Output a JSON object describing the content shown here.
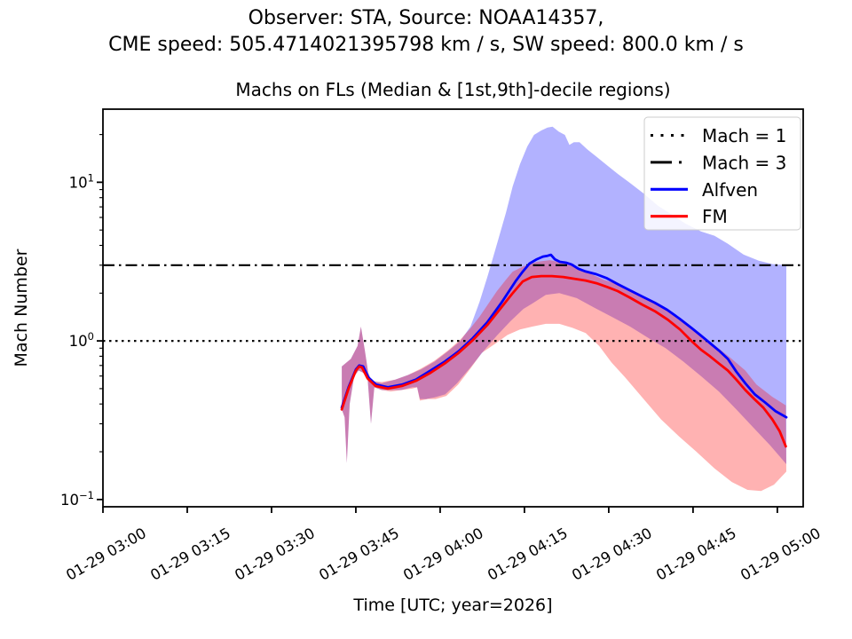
{
  "figure": {
    "suptitle_line1": "Observer: STA, Source: NOAA14357,",
    "suptitle_line2": "CME speed: 505.4714021395798 km / s, SW speed: 800.0 km / s"
  },
  "chart_data": {
    "type": "line",
    "title": "Machs on FLs (Median & [1st,9th]-decile regions)",
    "xlabel": "Time [UTC; year=2026]",
    "ylabel": "Mach Number",
    "yscale": "log",
    "ylim": [
      0.09,
      28.9
    ],
    "xlim_minutes": [
      0,
      124.6
    ],
    "x_ticks": [
      {
        "minutes": 0,
        "label": "01-29 03:00"
      },
      {
        "minutes": 15,
        "label": "01-29 03:15"
      },
      {
        "minutes": 30,
        "label": "01-29 03:30"
      },
      {
        "minutes": 45,
        "label": "01-29 03:45"
      },
      {
        "minutes": 60,
        "label": "01-29 04:00"
      },
      {
        "minutes": 75,
        "label": "01-29 04:15"
      },
      {
        "minutes": 90,
        "label": "01-29 04:30"
      },
      {
        "minutes": 105,
        "label": "01-29 04:45"
      },
      {
        "minutes": 120,
        "label": "01-29 05:00"
      }
    ],
    "y_ticks": [
      {
        "value": 10,
        "base": "10",
        "exp": "1"
      },
      {
        "value": 1,
        "base": "10",
        "exp": "0"
      },
      {
        "value": 0.1,
        "base": "10",
        "exp": "−1"
      }
    ],
    "hlines": [
      {
        "label": "Mach = 1",
        "value": 1,
        "style": "dotted",
        "color": "#000000"
      },
      {
        "label": "Mach = 3",
        "value": 3,
        "style": "dashdot",
        "color": "#000000"
      }
    ],
    "series": [
      {
        "name": "Alfven",
        "color": "#0000ff",
        "points": [
          [
            42.5,
            0.38
          ],
          [
            43.7,
            0.51
          ],
          [
            45.0,
            0.66
          ],
          [
            45.6,
            0.7
          ],
          [
            46.3,
            0.69
          ],
          [
            47.2,
            0.59
          ],
          [
            48.6,
            0.53
          ],
          [
            50.7,
            0.51
          ],
          [
            53.2,
            0.53
          ],
          [
            55.7,
            0.57
          ],
          [
            58.3,
            0.65
          ],
          [
            60.8,
            0.74
          ],
          [
            63.3,
            0.86
          ],
          [
            65.8,
            1.04
          ],
          [
            68.4,
            1.31
          ],
          [
            70.9,
            1.74
          ],
          [
            73.4,
            2.37
          ],
          [
            74.7,
            2.73
          ],
          [
            75.9,
            3.07
          ],
          [
            77.2,
            3.27
          ],
          [
            78.3,
            3.4
          ],
          [
            79.1,
            3.44
          ],
          [
            79.7,
            3.49
          ],
          [
            80.4,
            3.27
          ],
          [
            81.3,
            3.15
          ],
          [
            82.4,
            3.11
          ],
          [
            83.4,
            3.03
          ],
          [
            84.6,
            2.85
          ],
          [
            85.9,
            2.74
          ],
          [
            87.8,
            2.63
          ],
          [
            89.7,
            2.48
          ],
          [
            91.6,
            2.28
          ],
          [
            93.8,
            2.08
          ],
          [
            96.0,
            1.9
          ],
          [
            98.2,
            1.74
          ],
          [
            100.4,
            1.57
          ],
          [
            102.6,
            1.38
          ],
          [
            104.8,
            1.2
          ],
          [
            106.4,
            1.08
          ],
          [
            108.0,
            0.97
          ],
          [
            109.6,
            0.87
          ],
          [
            111.2,
            0.77
          ],
          [
            112.7,
            0.64
          ],
          [
            114.3,
            0.54
          ],
          [
            116.0,
            0.46
          ],
          [
            117.8,
            0.41
          ],
          [
            119.7,
            0.36
          ],
          [
            121.6,
            0.33
          ]
        ],
        "band_upper": [
          [
            42.5,
            0.69
          ],
          [
            44.1,
            0.77
          ],
          [
            45.3,
            0.93
          ],
          [
            45.9,
            1.23
          ],
          [
            46.6,
            0.87
          ],
          [
            47.2,
            0.63
          ],
          [
            47.8,
            0.56
          ],
          [
            49.6,
            0.54
          ],
          [
            52.0,
            0.57
          ],
          [
            54.3,
            0.61
          ],
          [
            56.6,
            0.66
          ],
          [
            59.0,
            0.74
          ],
          [
            61.4,
            0.86
          ],
          [
            63.5,
            0.99
          ],
          [
            65.4,
            1.23
          ],
          [
            67.0,
            1.76
          ],
          [
            68.5,
            2.6
          ],
          [
            70.1,
            4.07
          ],
          [
            71.7,
            6.4
          ],
          [
            72.9,
            9.4
          ],
          [
            74.2,
            13.0
          ],
          [
            75.5,
            16.8
          ],
          [
            76.7,
            19.9
          ],
          [
            78.0,
            21.2
          ],
          [
            79.1,
            22.1
          ],
          [
            80.0,
            22.4
          ],
          [
            81.1,
            20.9
          ],
          [
            82.2,
            19.9
          ],
          [
            83.0,
            17.2
          ],
          [
            83.8,
            17.9
          ],
          [
            84.8,
            17.9
          ],
          [
            86.2,
            16.1
          ],
          [
            87.8,
            14.5
          ],
          [
            89.7,
            12.8
          ],
          [
            91.6,
            11.3
          ],
          [
            93.8,
            9.9
          ],
          [
            96.2,
            8.5
          ],
          [
            98.8,
            7.1
          ],
          [
            101.4,
            6.2
          ],
          [
            103.6,
            5.5
          ],
          [
            106.4,
            4.9
          ],
          [
            108.8,
            4.6
          ],
          [
            111.2,
            4.1
          ],
          [
            114.0,
            3.5
          ],
          [
            116.7,
            3.2
          ],
          [
            119.1,
            3.05
          ],
          [
            121.6,
            3.0
          ]
        ],
        "band_lower": [
          [
            42.5,
            0.37
          ],
          [
            43.0,
            0.33
          ],
          [
            43.4,
            0.17
          ],
          [
            43.9,
            0.4
          ],
          [
            44.7,
            0.6
          ],
          [
            45.5,
            0.65
          ],
          [
            46.3,
            0.63
          ],
          [
            47.1,
            0.58
          ],
          [
            47.7,
            0.3
          ],
          [
            48.3,
            0.51
          ],
          [
            49.6,
            0.49
          ],
          [
            51.2,
            0.49
          ],
          [
            53.1,
            0.49
          ],
          [
            55.0,
            0.51
          ],
          [
            55.9,
            0.51
          ],
          [
            56.4,
            0.43
          ],
          [
            57.5,
            0.43
          ],
          [
            59.0,
            0.44
          ],
          [
            60.9,
            0.46
          ],
          [
            63.0,
            0.54
          ],
          [
            65.4,
            0.68
          ],
          [
            67.7,
            0.86
          ],
          [
            70.1,
            1.08
          ],
          [
            72.5,
            1.33
          ],
          [
            74.8,
            1.59
          ],
          [
            76.4,
            1.72
          ],
          [
            78.8,
            1.95
          ],
          [
            81.2,
            2.0
          ],
          [
            84.3,
            1.86
          ],
          [
            87.3,
            1.63
          ],
          [
            90.5,
            1.42
          ],
          [
            93.8,
            1.23
          ],
          [
            96.9,
            1.05
          ],
          [
            100.1,
            0.9
          ],
          [
            103.3,
            0.74
          ],
          [
            106.4,
            0.6
          ],
          [
            109.6,
            0.48
          ],
          [
            112.7,
            0.37
          ],
          [
            115.9,
            0.28
          ],
          [
            118.7,
            0.22
          ],
          [
            121.6,
            0.167
          ]
        ]
      },
      {
        "name": "FM",
        "color": "#ff0000",
        "points": [
          [
            42.5,
            0.37
          ],
          [
            43.7,
            0.5
          ],
          [
            45.0,
            0.65
          ],
          [
            45.6,
            0.69
          ],
          [
            46.1,
            0.68
          ],
          [
            47.1,
            0.58
          ],
          [
            48.5,
            0.52
          ],
          [
            50.7,
            0.5
          ],
          [
            53.2,
            0.52
          ],
          [
            55.7,
            0.56
          ],
          [
            58.3,
            0.63
          ],
          [
            60.8,
            0.72
          ],
          [
            63.3,
            0.84
          ],
          [
            65.8,
            1.01
          ],
          [
            68.4,
            1.26
          ],
          [
            70.9,
            1.63
          ],
          [
            72.8,
            1.98
          ],
          [
            74.7,
            2.37
          ],
          [
            76.3,
            2.53
          ],
          [
            78.0,
            2.56
          ],
          [
            79.9,
            2.56
          ],
          [
            81.9,
            2.53
          ],
          [
            84.0,
            2.46
          ],
          [
            85.9,
            2.4
          ],
          [
            87.8,
            2.31
          ],
          [
            89.7,
            2.19
          ],
          [
            91.6,
            2.06
          ],
          [
            93.8,
            1.87
          ],
          [
            96.0,
            1.69
          ],
          [
            98.2,
            1.54
          ],
          [
            100.5,
            1.36
          ],
          [
            102.7,
            1.18
          ],
          [
            104.7,
            1.0
          ],
          [
            106.4,
            0.88
          ],
          [
            108.0,
            0.8
          ],
          [
            109.6,
            0.72
          ],
          [
            111.2,
            0.65
          ],
          [
            112.7,
            0.57
          ],
          [
            114.3,
            0.49
          ],
          [
            115.9,
            0.43
          ],
          [
            117.5,
            0.38
          ],
          [
            119.1,
            0.32
          ],
          [
            120.4,
            0.27
          ],
          [
            121.5,
            0.216
          ]
        ],
        "band_upper": [
          [
            42.5,
            0.69
          ],
          [
            44.1,
            0.77
          ],
          [
            45.3,
            0.93
          ],
          [
            45.9,
            1.23
          ],
          [
            46.6,
            0.87
          ],
          [
            47.2,
            0.63
          ],
          [
            47.8,
            0.56
          ],
          [
            49.6,
            0.55
          ],
          [
            52.0,
            0.57
          ],
          [
            54.3,
            0.61
          ],
          [
            56.6,
            0.67
          ],
          [
            59.0,
            0.75
          ],
          [
            61.4,
            0.87
          ],
          [
            63.5,
            1.01
          ],
          [
            65.4,
            1.2
          ],
          [
            67.0,
            1.42
          ],
          [
            68.5,
            1.7
          ],
          [
            70.1,
            2.06
          ],
          [
            71.7,
            2.43
          ],
          [
            72.9,
            2.73
          ],
          [
            74.8,
            2.95
          ],
          [
            77.2,
            3.15
          ],
          [
            79.5,
            3.23
          ],
          [
            81.9,
            3.1
          ],
          [
            84.3,
            2.91
          ],
          [
            86.7,
            2.66
          ],
          [
            89.1,
            2.43
          ],
          [
            91.6,
            2.28
          ],
          [
            93.8,
            2.1
          ],
          [
            96.2,
            1.9
          ],
          [
            98.5,
            1.7
          ],
          [
            100.9,
            1.5
          ],
          [
            103.3,
            1.35
          ],
          [
            105.6,
            1.15
          ],
          [
            108.0,
            0.99
          ],
          [
            110.4,
            0.85
          ],
          [
            111.7,
            0.78
          ],
          [
            114.3,
            0.65
          ],
          [
            116.3,
            0.53
          ],
          [
            119.1,
            0.444
          ],
          [
            121.5,
            0.392
          ]
        ],
        "band_lower": [
          [
            42.5,
            0.37
          ],
          [
            43.0,
            0.33
          ],
          [
            43.4,
            0.17
          ],
          [
            43.9,
            0.4
          ],
          [
            44.7,
            0.6
          ],
          [
            45.5,
            0.65
          ],
          [
            46.3,
            0.63
          ],
          [
            47.1,
            0.58
          ],
          [
            47.7,
            0.3
          ],
          [
            48.3,
            0.51
          ],
          [
            49.6,
            0.49
          ],
          [
            51.2,
            0.48
          ],
          [
            53.1,
            0.49
          ],
          [
            55.0,
            0.5
          ],
          [
            55.9,
            0.51
          ],
          [
            56.4,
            0.42
          ],
          [
            57.8,
            0.43
          ],
          [
            59.2,
            0.43
          ],
          [
            61.1,
            0.45
          ],
          [
            63.2,
            0.53
          ],
          [
            65.4,
            0.67
          ],
          [
            67.4,
            0.84
          ],
          [
            69.8,
            0.96
          ],
          [
            72.0,
            1.09
          ],
          [
            74.2,
            1.18
          ],
          [
            76.4,
            1.23
          ],
          [
            78.8,
            1.28
          ],
          [
            81.2,
            1.28
          ],
          [
            83.5,
            1.21
          ],
          [
            85.9,
            1.12
          ],
          [
            88.3,
            0.93
          ],
          [
            90.5,
            0.73
          ],
          [
            92.9,
            0.59
          ],
          [
            96.2,
            0.43
          ],
          [
            99.3,
            0.32
          ],
          [
            102.5,
            0.25
          ],
          [
            105.6,
            0.2
          ],
          [
            108.8,
            0.157
          ],
          [
            111.9,
            0.129
          ],
          [
            114.7,
            0.115
          ],
          [
            117.1,
            0.113
          ],
          [
            119.4,
            0.124
          ],
          [
            121.6,
            0.15
          ]
        ]
      }
    ],
    "legend": {
      "position": "upper-right",
      "entries": [
        {
          "label": "Mach = 1",
          "style": "dotted",
          "color": "#000000"
        },
        {
          "label": "Mach = 3",
          "style": "dashdot",
          "color": "#000000"
        },
        {
          "label": "Alfven",
          "style": "solid",
          "color": "#0000ff"
        },
        {
          "label": "FM",
          "style": "solid",
          "color": "#ff0000"
        }
      ]
    },
    "band_opacity": 0.3
  }
}
